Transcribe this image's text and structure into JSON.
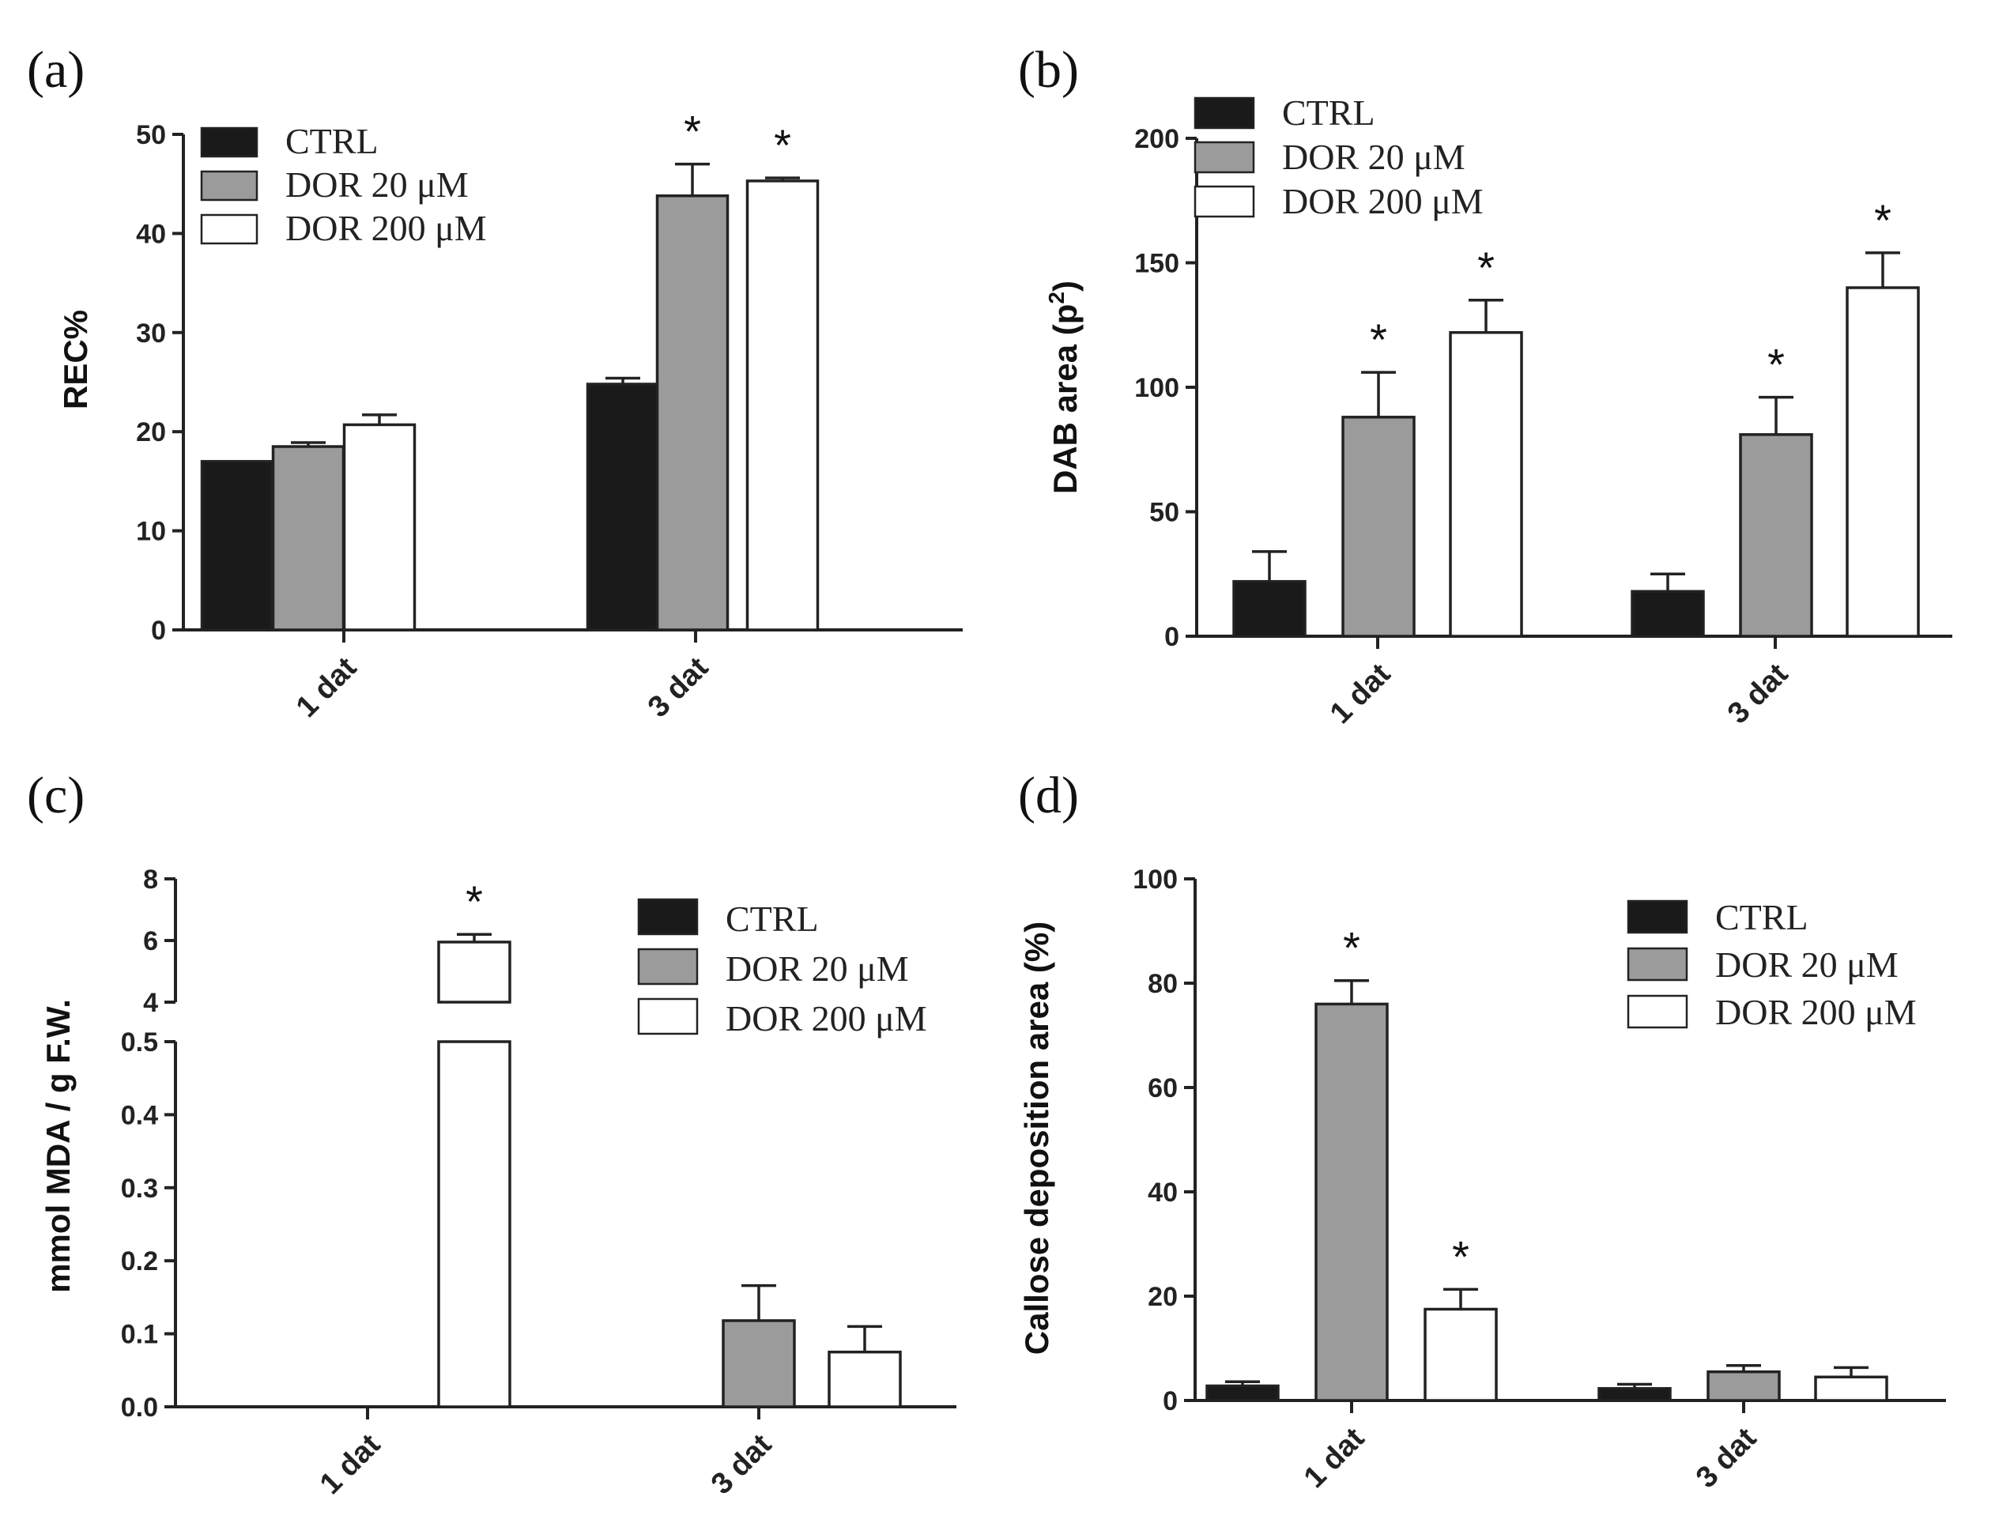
{
  "colors": {
    "CTRL": "#1a1a1a",
    "DOR 20 μM": "#9b9b9b",
    "DOR 200 μM": "#ffffff",
    "axis": "#222222"
  },
  "chart_data": [
    {
      "panel": "(a)",
      "type": "bar",
      "ylabel": "REC%",
      "ylim": [
        0,
        50
      ],
      "yticks": [
        "0",
        "10",
        "20",
        "30",
        "40",
        "50"
      ],
      "categories": [
        "1 dat",
        "3 dat"
      ],
      "legend": [
        "CTRL",
        "DOR 20 μM",
        "DOR 200 μM"
      ],
      "legend_position": "top-left",
      "series": [
        {
          "name": "CTRL",
          "values": [
            17.0,
            24.8
          ],
          "errors": [
            0,
            0.6
          ],
          "stars": [
            "",
            ""
          ]
        },
        {
          "name": "DOR 20 μM",
          "values": [
            18.5,
            43.8
          ],
          "errors": [
            0.4,
            3.2
          ],
          "stars": [
            "",
            "*"
          ]
        },
        {
          "name": "DOR 200 μM",
          "values": [
            20.7,
            45.3
          ],
          "errors": [
            1.0,
            0.3
          ],
          "stars": [
            "",
            "*"
          ]
        }
      ]
    },
    {
      "panel": "(b)",
      "type": "bar",
      "ylabel": "DAB area (p",
      "ylabel_sup": "2",
      "ylabel_end": ")",
      "ylim": [
        0,
        200
      ],
      "yticks": [
        "0",
        "50",
        "100",
        "150",
        "200"
      ],
      "categories": [
        "1 dat",
        "3 dat"
      ],
      "legend": [
        "CTRL",
        "DOR 20 μM",
        "DOR 200 μM"
      ],
      "legend_position": "top-left",
      "series": [
        {
          "name": "CTRL",
          "values": [
            22,
            18
          ],
          "errors": [
            12,
            7
          ],
          "stars": [
            "",
            ""
          ]
        },
        {
          "name": "DOR 20 μM",
          "values": [
            88,
            81
          ],
          "errors": [
            18,
            15
          ],
          "stars": [
            "*",
            "*"
          ]
        },
        {
          "name": "DOR 200 μM",
          "values": [
            122,
            140
          ],
          "errors": [
            13,
            14
          ],
          "stars": [
            "*",
            "*"
          ]
        }
      ]
    },
    {
      "panel": "(c)",
      "type": "bar",
      "ylabel": "mmol MDA / g F.W.",
      "ylim": [
        0,
        8
      ],
      "axis_break": [
        0.5,
        4
      ],
      "yticks_lower": [
        "0.0",
        "0.1",
        "0.2",
        "0.3",
        "0.4",
        "0.5"
      ],
      "yticks_upper": [
        "4",
        "6",
        "8"
      ],
      "categories": [
        "1 dat",
        "3 dat"
      ],
      "legend": [
        "CTRL",
        "DOR 20 μM",
        "DOR 200 μM"
      ],
      "legend_position": "top-right",
      "series": [
        {
          "name": "CTRL",
          "values": [
            0,
            0
          ],
          "errors": [
            0,
            0
          ],
          "stars": [
            "",
            ""
          ]
        },
        {
          "name": "DOR 20 μM",
          "values": [
            0,
            0.118
          ],
          "errors": [
            0,
            0.048
          ],
          "stars": [
            "",
            ""
          ]
        },
        {
          "name": "DOR 200 μM",
          "values": [
            5.95,
            0.075
          ],
          "errors": [
            0.25,
            0.035
          ],
          "stars": [
            "*",
            ""
          ]
        }
      ]
    },
    {
      "panel": "(d)",
      "type": "bar",
      "ylabel": "Callose deposition area (%)",
      "ylim": [
        0,
        100
      ],
      "yticks": [
        "0",
        "20",
        "40",
        "60",
        "80",
        "100"
      ],
      "categories": [
        "1 dat",
        "3 dat"
      ],
      "legend": [
        "CTRL",
        "DOR 20 μM",
        "DOR 200 μM"
      ],
      "legend_position": "top-right",
      "series": [
        {
          "name": "CTRL",
          "values": [
            2.8,
            2.3
          ],
          "errors": [
            0.8,
            0.8
          ],
          "stars": [
            "",
            ""
          ]
        },
        {
          "name": "DOR 20 μM",
          "values": [
            76,
            5.5
          ],
          "errors": [
            4.5,
            1.2
          ],
          "stars": [
            "*",
            ""
          ]
        },
        {
          "name": "DOR 200 μM",
          "values": [
            17.5,
            4.5
          ],
          "errors": [
            3.8,
            1.8
          ],
          "stars": [
            "*",
            ""
          ]
        }
      ]
    }
  ]
}
